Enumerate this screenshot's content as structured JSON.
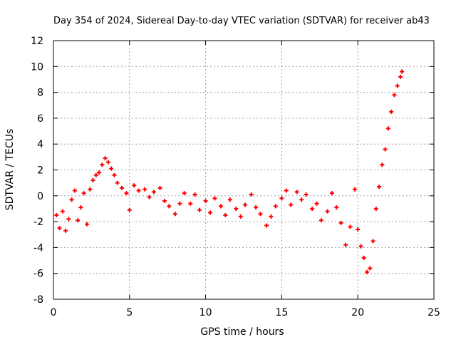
{
  "chart_data": {
    "type": "scatter",
    "title": "Day 354 of 2024, Sidereal Day-to-day VTEC variation (SDTVAR) for receiver ab43",
    "xlabel": "GPS time / hours",
    "ylabel": "SDTVAR / TECUs",
    "xlim": [
      0,
      25
    ],
    "ylim": [
      -8,
      12
    ],
    "x_ticks": [
      0,
      5,
      10,
      15,
      20,
      25
    ],
    "y_ticks": [
      -8,
      -6,
      -4,
      -2,
      0,
      2,
      4,
      6,
      8,
      10,
      12
    ],
    "grid": true,
    "marker": "+",
    "series": [
      {
        "name": "SDTVAR",
        "color": "#ff0000",
        "x": [
          0.2,
          0.4,
          0.6,
          0.8,
          1.0,
          1.2,
          1.4,
          1.6,
          1.8,
          2.0,
          2.2,
          2.4,
          2.6,
          2.8,
          3.0,
          3.2,
          3.4,
          3.6,
          3.8,
          4.0,
          4.2,
          4.5,
          4.8,
          5.0,
          5.3,
          5.6,
          6.0,
          6.3,
          6.6,
          7.0,
          7.3,
          7.6,
          8.0,
          8.3,
          8.6,
          9.0,
          9.3,
          9.6,
          10.0,
          10.3,
          10.6,
          11.0,
          11.3,
          11.6,
          12.0,
          12.3,
          12.6,
          13.0,
          13.3,
          13.6,
          14.0,
          14.3,
          14.6,
          15.0,
          15.3,
          15.6,
          16.0,
          16.3,
          16.6,
          17.0,
          17.3,
          17.6,
          18.0,
          18.3,
          18.6,
          18.9,
          19.2,
          19.5,
          19.8,
          20.0,
          20.2,
          20.4,
          20.6,
          20.8,
          21.0,
          21.2,
          21.4,
          21.6,
          21.8,
          22.0,
          22.2,
          22.4,
          22.6,
          22.8,
          22.9
        ],
        "y": [
          -1.5,
          -2.5,
          -1.2,
          -2.7,
          -1.8,
          -0.3,
          0.4,
          -1.9,
          -0.9,
          0.2,
          -2.2,
          0.5,
          1.2,
          1.6,
          1.8,
          2.4,
          2.9,
          2.6,
          2.1,
          1.6,
          1.0,
          0.6,
          0.2,
          -1.1,
          0.8,
          0.4,
          0.5,
          -0.1,
          0.3,
          0.6,
          -0.4,
          -0.8,
          -1.4,
          -0.6,
          0.2,
          -0.6,
          0.1,
          -1.1,
          -0.4,
          -1.3,
          -0.2,
          -0.8,
          -1.5,
          -0.3,
          -1.0,
          -1.6,
          -0.7,
          0.1,
          -0.9,
          -1.4,
          -2.3,
          -1.6,
          -0.8,
          -0.2,
          0.4,
          -0.7,
          0.3,
          -0.3,
          0.1,
          -1.0,
          -0.6,
          -1.9,
          -1.2,
          0.2,
          -0.9,
          -2.1,
          -3.8,
          -2.4,
          0.5,
          -2.6,
          -3.9,
          -4.8,
          -5.9,
          -5.6,
          -3.5,
          -1.0,
          0.7,
          2.4,
          3.6,
          5.2,
          6.5,
          7.8,
          8.5,
          9.2,
          9.6
        ]
      }
    ]
  }
}
